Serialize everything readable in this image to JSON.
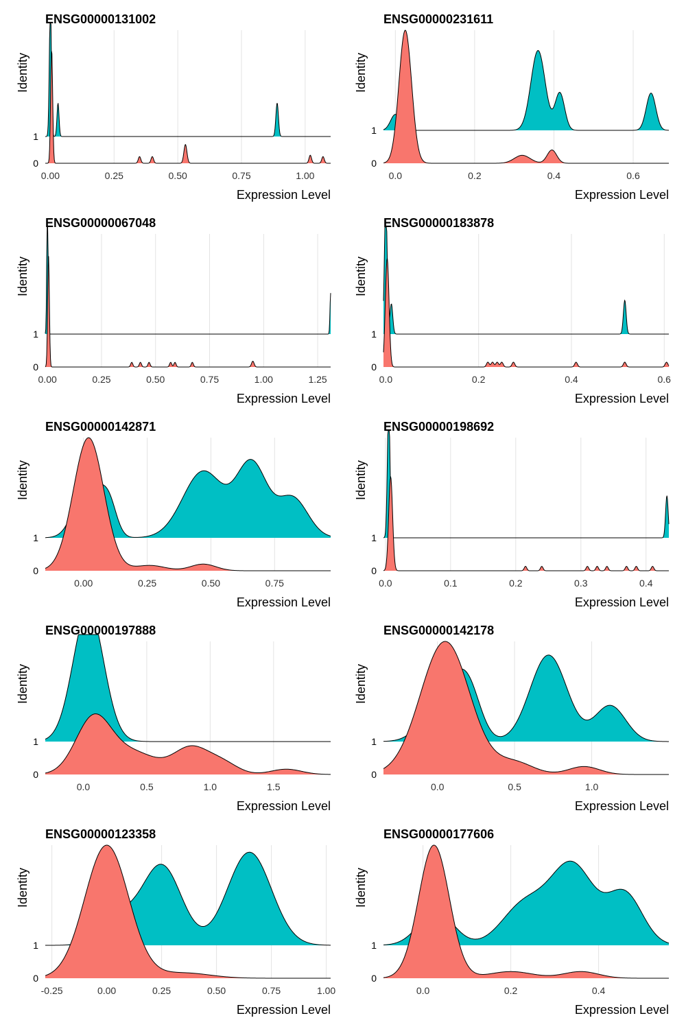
{
  "colors": {
    "identity_0": "#F8766D",
    "identity_1": "#00BFC4"
  },
  "chart_data": [
    {
      "type": "area",
      "title": "ENSG00000131002",
      "xlabel": "Expression Level",
      "ylabel": "Identity",
      "identities": [
        "0",
        "1"
      ],
      "xlim": [
        -0.02,
        1.1
      ],
      "xticks": [
        0,
        0.25,
        0.5,
        0.75,
        1.0
      ],
      "xtick_labels": [
        "0.00",
        "0.25",
        "0.50",
        "0.75",
        "1.00"
      ],
      "series": [
        {
          "name": "1",
          "peaks": [
            [
              0.0,
              1.0,
              0.004
            ],
            [
              0.03,
              0.25,
              0.004
            ],
            [
              0.89,
              0.25,
              0.005
            ]
          ]
        },
        {
          "name": "0",
          "peaks": [
            [
              0.005,
              0.85,
              0.004
            ],
            [
              0.35,
              0.05,
              0.005
            ],
            [
              0.4,
              0.05,
              0.005
            ],
            [
              0.53,
              0.14,
              0.006
            ],
            [
              1.02,
              0.06,
              0.005
            ],
            [
              1.07,
              0.05,
              0.005
            ]
          ]
        }
      ]
    },
    {
      "type": "area",
      "title": "ENSG00000231611",
      "xlabel": "Expression Level",
      "ylabel": "Identity",
      "identities": [
        "0",
        "1"
      ],
      "xlim": [
        -0.03,
        0.69
      ],
      "xticks": [
        0,
        0.2,
        0.4,
        0.6
      ],
      "xtick_labels": [
        "0.0",
        "0.2",
        "0.4",
        "0.6"
      ],
      "series": [
        {
          "name": "1",
          "peaks": [
            [
              0.0,
              0.12,
              0.012
            ],
            [
              0.36,
              0.6,
              0.018
            ],
            [
              0.415,
              0.28,
              0.012
            ],
            [
              0.645,
              0.28,
              0.012
            ]
          ]
        },
        {
          "name": "0",
          "peaks": [
            [
              0.025,
              1.0,
              0.016
            ],
            [
              0.32,
              0.06,
              0.02
            ],
            [
              0.395,
              0.1,
              0.012
            ]
          ]
        }
      ]
    },
    {
      "type": "area",
      "title": "ENSG00000067048",
      "xlabel": "Expression Level",
      "ylabel": "Identity",
      "identities": [
        "0",
        "1"
      ],
      "xlim": [
        -0.01,
        1.31
      ],
      "xticks": [
        0,
        0.25,
        0.5,
        0.75,
        1.0,
        1.25
      ],
      "xtick_labels": [
        "0.00",
        "0.25",
        "0.50",
        "0.75",
        "1.00",
        "1.25"
      ],
      "series": [
        {
          "name": "1",
          "peaks": [
            [
              0.0,
              1.2,
              0.003
            ],
            [
              1.31,
              0.35,
              0.003
            ]
          ]
        },
        {
          "name": "0",
          "peaks": [
            [
              0.005,
              0.95,
              0.004
            ],
            [
              0.39,
              0.04,
              0.005
            ],
            [
              0.43,
              0.04,
              0.005
            ],
            [
              0.47,
              0.04,
              0.005
            ],
            [
              0.57,
              0.04,
              0.005
            ],
            [
              0.59,
              0.04,
              0.005
            ],
            [
              0.67,
              0.04,
              0.005
            ],
            [
              0.95,
              0.05,
              0.006
            ]
          ]
        }
      ]
    },
    {
      "type": "area",
      "title": "ENSG00000183878",
      "xlabel": "Expression Level",
      "ylabel": "Identity",
      "identities": [
        "0",
        "1"
      ],
      "xlim": [
        -0.005,
        0.61
      ],
      "xticks": [
        0,
        0.2,
        0.4,
        0.6
      ],
      "xtick_labels": [
        "0.0",
        "0.2",
        "0.4",
        "0.6"
      ],
      "series": [
        {
          "name": "1",
          "peaks": [
            [
              0.0,
              1.1,
              0.003
            ],
            [
              0.012,
              0.25,
              0.003
            ],
            [
              0.515,
              0.28,
              0.003
            ]
          ]
        },
        {
          "name": "0",
          "peaks": [
            [
              0.003,
              0.9,
              0.004
            ],
            [
              0.22,
              0.04,
              0.003
            ],
            [
              0.23,
              0.04,
              0.003
            ],
            [
              0.24,
              0.04,
              0.003
            ],
            [
              0.25,
              0.04,
              0.003
            ],
            [
              0.275,
              0.04,
              0.003
            ],
            [
              0.41,
              0.04,
              0.003
            ],
            [
              0.515,
              0.04,
              0.003
            ],
            [
              0.605,
              0.04,
              0.003
            ]
          ]
        }
      ]
    },
    {
      "type": "area",
      "title": "ENSG00000142871",
      "xlabel": "Expression Level",
      "ylabel": "Identity",
      "identities": [
        "0",
        "1"
      ],
      "xlim": [
        -0.15,
        0.97
      ],
      "xticks": [
        0,
        0.25,
        0.5,
        0.75
      ],
      "xtick_labels": [
        "0.00",
        "0.25",
        "0.50",
        "0.75"
      ],
      "series": [
        {
          "name": "1",
          "peaks": [
            [
              0.02,
              0.45,
              0.05
            ],
            [
              0.1,
              0.22,
              0.03
            ],
            [
              0.47,
              0.5,
              0.08
            ],
            [
              0.66,
              0.55,
              0.06
            ],
            [
              0.82,
              0.3,
              0.06
            ]
          ]
        },
        {
          "name": "0",
          "peaks": [
            [
              0.02,
              1.0,
              0.06
            ],
            [
              0.26,
              0.04,
              0.06
            ],
            [
              0.47,
              0.05,
              0.05
            ]
          ]
        }
      ]
    },
    {
      "type": "area",
      "title": "ENSG00000198692",
      "xlabel": "Expression Level",
      "ylabel": "Identity",
      "identities": [
        "0",
        "1"
      ],
      "xlim": [
        -0.003,
        0.435
      ],
      "xticks": [
        0,
        0.1,
        0.2,
        0.3,
        0.4
      ],
      "xtick_labels": [
        "0.0",
        "0.1",
        "0.2",
        "0.3",
        "0.4"
      ],
      "series": [
        {
          "name": "1",
          "peaks": [
            [
              0.005,
              1.2,
              0.002
            ],
            [
              0.432,
              0.38,
              0.002
            ]
          ]
        },
        {
          "name": "0",
          "peaks": [
            [
              0.008,
              0.85,
              0.003
            ],
            [
              0.215,
              0.04,
              0.002
            ],
            [
              0.24,
              0.04,
              0.002
            ],
            [
              0.31,
              0.04,
              0.002
            ],
            [
              0.325,
              0.04,
              0.002
            ],
            [
              0.34,
              0.04,
              0.002
            ],
            [
              0.37,
              0.04,
              0.002
            ],
            [
              0.385,
              0.04,
              0.002
            ],
            [
              0.41,
              0.04,
              0.002
            ]
          ]
        }
      ]
    },
    {
      "type": "area",
      "title": "ENSG00000197888",
      "xlabel": "Expression Level",
      "ylabel": "Identity",
      "identities": [
        "0",
        "1"
      ],
      "xlim": [
        -0.3,
        1.95
      ],
      "xticks": [
        0,
        0.5,
        1.0,
        1.5
      ],
      "xtick_labels": [
        "0.0",
        "0.5",
        "1.0",
        "1.5"
      ],
      "series": [
        {
          "name": "1",
          "peaks": [
            [
              0.04,
              1.0,
              0.12
            ]
          ]
        },
        {
          "name": "0",
          "peaks": [
            [
              0.08,
              0.42,
              0.14
            ],
            [
              0.4,
              0.16,
              0.18
            ],
            [
              0.85,
              0.2,
              0.14
            ],
            [
              1.1,
              0.08,
              0.12
            ],
            [
              1.6,
              0.04,
              0.12
            ]
          ]
        }
      ]
    },
    {
      "type": "area",
      "title": "ENSG00000142178",
      "xlabel": "Expression Level",
      "ylabel": "Identity",
      "identities": [
        "0",
        "1"
      ],
      "xlim": [
        -0.35,
        1.5
      ],
      "xticks": [
        0,
        0.5,
        1.0
      ],
      "xtick_labels": [
        "0.0",
        "0.5",
        "1.0"
      ],
      "series": [
        {
          "name": "1",
          "peaks": [
            [
              0.05,
              0.4,
              0.12
            ],
            [
              0.2,
              0.32,
              0.08
            ],
            [
              0.72,
              0.65,
              0.12
            ],
            [
              1.12,
              0.27,
              0.1
            ]
          ]
        },
        {
          "name": "0",
          "peaks": [
            [
              0.05,
              1.0,
              0.16
            ],
            [
              0.5,
              0.09,
              0.12
            ],
            [
              0.95,
              0.06,
              0.1
            ]
          ]
        }
      ]
    },
    {
      "type": "area",
      "title": "ENSG00000123358",
      "xlabel": "Expression Level",
      "ylabel": "Identity",
      "identities": [
        "0",
        "1"
      ],
      "xlim": [
        -0.28,
        1.02
      ],
      "xticks": [
        -0.25,
        0,
        0.25,
        0.5,
        0.75,
        1.0
      ],
      "xtick_labels": [
        "-0.25",
        "0.00",
        "0.25",
        "0.50",
        "0.75",
        "1.00"
      ],
      "series": [
        {
          "name": "1",
          "peaks": [
            [
              0.25,
              0.6,
              0.09
            ],
            [
              0.65,
              0.7,
              0.1
            ],
            [
              0.05,
              0.2,
              0.08
            ]
          ]
        },
        {
          "name": "0",
          "peaks": [
            [
              0.0,
              1.0,
              0.1
            ],
            [
              0.35,
              0.04,
              0.12
            ]
          ]
        }
      ]
    },
    {
      "type": "area",
      "title": "ENSG00000177606",
      "xlabel": "Expression Level",
      "ylabel": "Identity",
      "identities": [
        "0",
        "1"
      ],
      "xlim": [
        -0.09,
        0.56
      ],
      "xticks": [
        0,
        0.2,
        0.4
      ],
      "xtick_labels": [
        "0.0",
        "0.2",
        "0.4"
      ],
      "series": [
        {
          "name": "1",
          "peaks": [
            [
              0.03,
              0.25,
              0.04
            ],
            [
              0.23,
              0.3,
              0.05
            ],
            [
              0.34,
              0.6,
              0.05
            ],
            [
              0.46,
              0.38,
              0.04
            ]
          ]
        },
        {
          "name": "0",
          "peaks": [
            [
              0.025,
              1.0,
              0.035
            ],
            [
              0.2,
              0.05,
              0.05
            ],
            [
              0.36,
              0.05,
              0.04
            ]
          ]
        }
      ]
    }
  ]
}
